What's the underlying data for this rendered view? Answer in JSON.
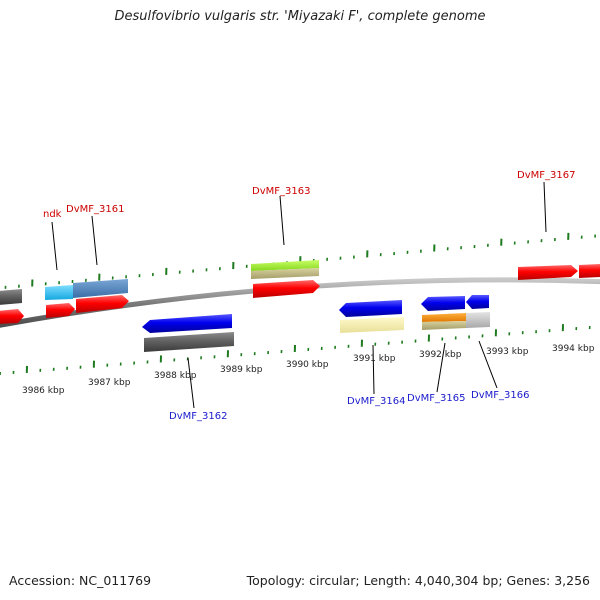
{
  "title": "Desulfovibrio vulgaris str. 'Miyazaki F', complete genome",
  "footer": {
    "accession": "Accession: NC_011769",
    "stats": "Topology: circular; Length: 4,040,304 bp; Genes: 3,256"
  },
  "colors": {
    "backbone": "#8a8a8a",
    "tick": "#1e7a1e",
    "label_top": "#cc0000",
    "label_bottom": "#1a1acc"
  },
  "scale_labels": [
    "3986 kbp",
    "3987 kbp",
    "3988 kbp",
    "3989 kbp",
    "3990 kbp",
    "3991 kbp",
    "3992 kbp",
    "3993 kbp",
    "3994 kbp"
  ],
  "genes_forward": [
    {
      "label": "ndk",
      "strand": "+"
    },
    {
      "label": "DvMF_3161",
      "strand": "+"
    },
    {
      "label": "DvMF_3163",
      "strand": "+"
    },
    {
      "label": "DvMF_3167",
      "strand": "+"
    }
  ],
  "genes_reverse": [
    {
      "label": "DvMF_3162",
      "strand": "-"
    },
    {
      "label": "DvMF_3164",
      "strand": "-"
    },
    {
      "label": "DvMF_3165",
      "strand": "-"
    },
    {
      "label": "DvMF_3166",
      "strand": "-"
    }
  ]
}
